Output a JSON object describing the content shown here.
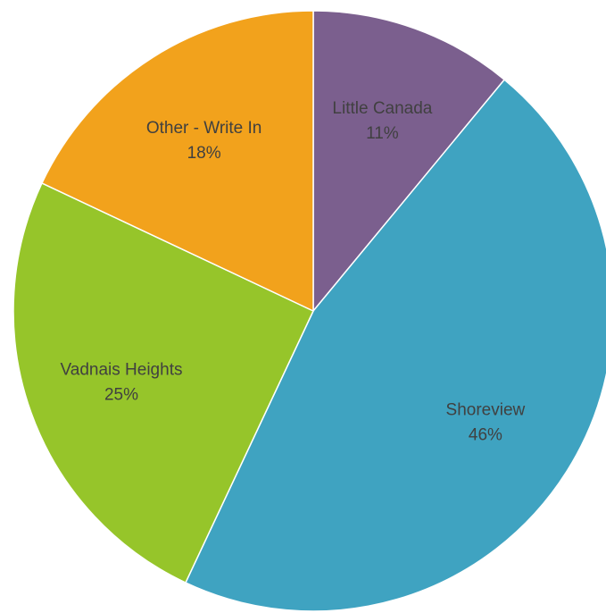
{
  "chart_data": {
    "type": "pie",
    "title": "",
    "slices": [
      {
        "label": "Little Canada",
        "value": 11,
        "value_label": "11%",
        "color": "#7b5f8e"
      },
      {
        "label": "Shoreview",
        "value": 46,
        "value_label": "46%",
        "color": "#3fa3c1"
      },
      {
        "label": "Vadnais Heights",
        "value": 25,
        "value_label": "25%",
        "color": "#96c52a"
      },
      {
        "label": "Other - Write In",
        "value": 18,
        "value_label": "18%",
        "color": "#f2a21c"
      }
    ],
    "start": "12 o'clock",
    "direction": "clockwise",
    "legend": "none",
    "data_labels": "inside"
  }
}
